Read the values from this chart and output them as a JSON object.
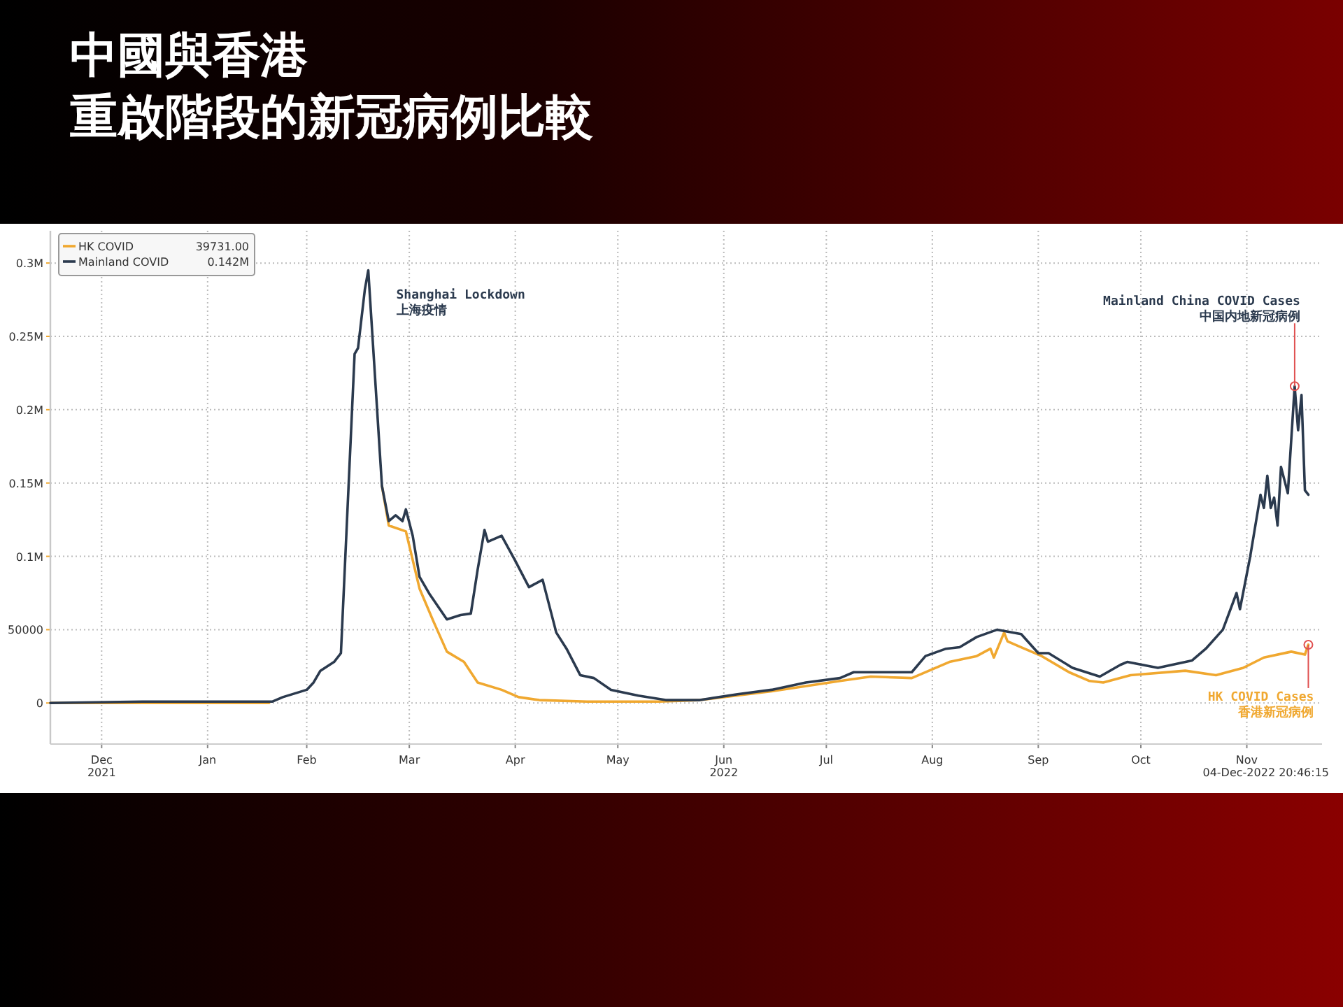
{
  "chart_data": {
    "type": "line",
    "title": "中國與香港",
    "subtitle": "重啟階段的新冠病例比較",
    "series": [
      {
        "name": "HK COVID",
        "color": "#f0a830",
        "x": [
          "2021-12-01",
          "2022-02-03",
          "2022-02-04",
          "2022-03-08",
          "2022-03-10",
          "2022-03-15",
          "2022-03-19",
          "2022-03-23",
          "2022-03-27",
          "2022-04-01",
          "2022-04-05",
          "2022-04-12",
          "2022-04-17",
          "2022-04-23",
          "2022-05-07",
          "2022-05-28",
          "2022-06-09",
          "2022-06-30",
          "2022-07-20",
          "2022-07-29",
          "2022-08-10",
          "2022-08-21",
          "2022-08-29",
          "2022-09-02",
          "2022-09-03",
          "2022-09-06",
          "2022-09-07",
          "2022-09-11",
          "2022-09-17",
          "2022-09-25",
          "2022-10-01",
          "2022-10-05",
          "2022-10-13",
          "2022-10-29",
          "2022-11-07",
          "2022-11-15",
          "2022-11-21",
          "2022-11-29",
          "2022-12-03",
          "2022-12-04"
        ],
        "values": [
          0,
          0,
          null,
          148000,
          121000,
          117000,
          78000,
          56000,
          35000,
          28000,
          14000,
          9000,
          4000,
          2000,
          1000,
          1000,
          2000,
          8000,
          15000,
          18000,
          17000,
          28000,
          32000,
          37000,
          31000,
          48000,
          42000,
          38000,
          32000,
          21000,
          15000,
          14000,
          19000,
          22000,
          19000,
          24000,
          31000,
          35000,
          33000,
          39731
        ]
      },
      {
        "name": "Mainland COVID",
        "color": "#2b3a4e",
        "x": [
          "2021-12-01",
          "2021-12-28",
          "2022-02-04",
          "2022-02-07",
          "2022-02-14",
          "2022-02-16",
          "2022-02-18",
          "2022-02-22",
          "2022-02-24",
          "2022-02-28",
          "2022-03-01",
          "2022-03-03",
          "2022-03-04",
          "2022-03-08",
          "2022-03-10",
          "2022-03-12",
          "2022-03-14",
          "2022-03-15",
          "2022-03-17",
          "2022-03-19",
          "2022-03-22",
          "2022-03-27",
          "2022-03-31",
          "2022-04-03",
          "2022-04-05",
          "2022-04-07",
          "2022-04-08",
          "2022-04-12",
          "2022-04-16",
          "2022-04-20",
          "2022-04-24",
          "2022-04-28",
          "2022-05-01",
          "2022-05-05",
          "2022-05-09",
          "2022-05-14",
          "2022-05-22",
          "2022-05-30",
          "2022-06-09",
          "2022-06-20",
          "2022-06-30",
          "2022-07-10",
          "2022-07-20",
          "2022-07-24",
          "2022-07-29",
          "2022-08-10",
          "2022-08-14",
          "2022-08-20",
          "2022-08-24",
          "2022-08-29",
          "2022-09-04",
          "2022-09-11",
          "2022-09-16",
          "2022-09-19",
          "2022-09-26",
          "2022-09-30",
          "2022-10-04",
          "2022-10-10",
          "2022-10-12",
          "2022-10-21",
          "2022-10-31",
          "2022-11-04",
          "2022-11-09",
          "2022-11-13",
          "2022-11-14",
          "2022-11-17",
          "2022-11-18",
          "2022-11-20",
          "2022-11-21",
          "2022-11-22",
          "2022-11-23",
          "2022-11-24",
          "2022-11-25",
          "2022-11-26",
          "2022-11-28",
          "2022-11-30",
          "2022-12-01",
          "2022-12-02",
          "2022-12-03",
          "2022-12-04"
        ],
        "values": [
          0,
          1000,
          1000,
          4000,
          9000,
          14000,
          22000,
          28000,
          34000,
          238000,
          242000,
          282000,
          295000,
          148000,
          124000,
          128000,
          124000,
          132000,
          114000,
          86000,
          74000,
          57000,
          60000,
          61000,
          91000,
          118000,
          110000,
          114000,
          97000,
          79000,
          84000,
          48000,
          37000,
          19000,
          17000,
          9000,
          5000,
          2000,
          2000,
          6000,
          9000,
          14000,
          17000,
          21000,
          21000,
          21000,
          32000,
          37000,
          38000,
          45000,
          50000,
          47000,
          34000,
          34000,
          24000,
          21000,
          18000,
          26000,
          28000,
          24000,
          29000,
          37000,
          50000,
          75000,
          64000,
          100000,
          114000,
          142000,
          133000,
          155000,
          133000,
          140000,
          121000,
          161000,
          143000,
          216000,
          186000,
          210000,
          145000,
          142000
        ]
      }
    ],
    "annotations": [
      {
        "text": "Shanghai Lockdown\n上海疫情",
        "x": "2022-03-04",
        "y": 295000
      },
      {
        "text": "Mainland China COVID Cases\n中国内地新冠病例",
        "x": "2022-11-30",
        "y": 216000
      },
      {
        "text": "HK COVID Cases\n香港新冠病例",
        "x": "2022-12-04",
        "y": 39731
      },
      "39731.00",
      "0.142M",
      "04-Dec-2022 20:46:15"
    ],
    "xlim": [
      "2021-12-01",
      "2022-12-08"
    ],
    "xticks": [
      {
        "value": "2021-12-16",
        "label": "Dec\n2021"
      },
      {
        "value": "2022-01-16",
        "label": "Jan"
      },
      {
        "value": "2022-02-14",
        "label": "Feb"
      },
      {
        "value": "2022-03-16",
        "label": "Mar"
      },
      {
        "value": "2022-04-16",
        "label": "Apr"
      },
      {
        "value": "2022-05-16",
        "label": "May"
      },
      {
        "value": "2022-06-16",
        "label": "Jun\n2022"
      },
      {
        "value": "2022-07-16",
        "label": "Jul"
      },
      {
        "value": "2022-08-16",
        "label": "Aug"
      },
      {
        "value": "2022-09-16",
        "label": "Sep"
      },
      {
        "value": "2022-10-16",
        "label": "Oct"
      },
      {
        "value": "2022-11-16",
        "label": "Nov"
      }
    ],
    "ylim": [
      -28000,
      322000
    ],
    "yticks": [
      0,
      50000,
      {
        "value": 100000,
        "label": "0.1M"
      },
      {
        "value": 150000,
        "label": "0.15M"
      },
      {
        "value": 200000,
        "label": "0.2M"
      },
      {
        "value": 250000,
        "label": "0.25M"
      },
      {
        "value": 300000,
        "label": "0.3M"
      }
    ],
    "grid": true,
    "legend": "top left",
    "marker": "none",
    "line_style": "solid"
  }
}
